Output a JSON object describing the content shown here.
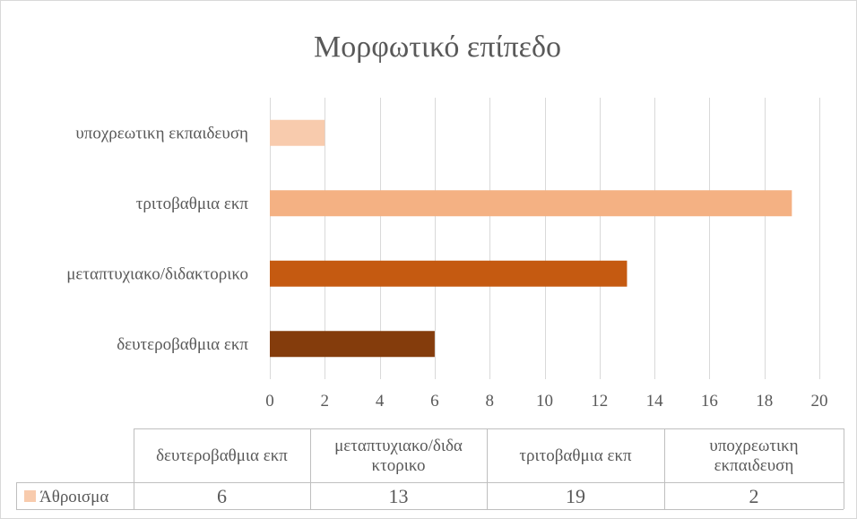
{
  "chart_data": {
    "type": "bar",
    "orientation": "horizontal",
    "title": "Μορφωτικό επίπεδο",
    "categories": [
      "δευτεροβαθμια εκπ",
      "μεταπτυχιακο/διδακτορικο",
      "τριτοβαθμια εκπ",
      "υποχρεωτικη εκπαιδευση"
    ],
    "table_headers": [
      [
        "δευτεροβαθμια εκπ"
      ],
      [
        "μεταπτυχιακο/διδα",
        "κτορικο"
      ],
      [
        "τριτοβαθμια εκπ"
      ],
      [
        "υποχρεωτικη",
        "εκπαιδευση"
      ]
    ],
    "series": [
      {
        "name": "Άθροισμα",
        "values": [
          6,
          13,
          19,
          2
        ],
        "legend_color": "#F8CBAD"
      }
    ],
    "bar_colors": [
      "#843C0C",
      "#C55A11",
      "#F4B183",
      "#F8CBAD"
    ],
    "xlim": [
      0,
      20
    ],
    "xticks": [
      0,
      2,
      4,
      6,
      8,
      10,
      12,
      14,
      16,
      18,
      20
    ],
    "grid": true,
    "legend": "data-table-bottom"
  }
}
